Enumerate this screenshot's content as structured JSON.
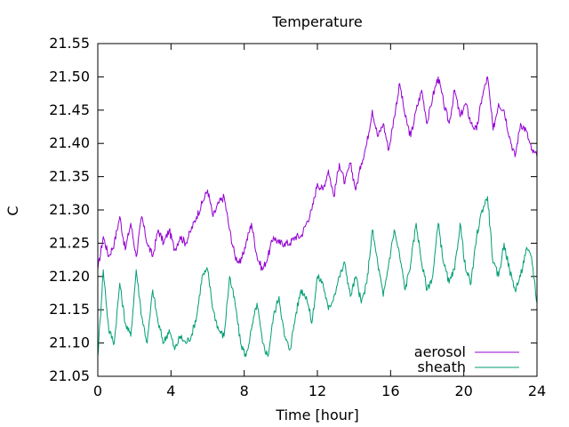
{
  "chart_data": {
    "type": "line",
    "title": "Temperature",
    "xlabel": "Time [hour]",
    "ylabel": "C",
    "xlim": [
      0,
      24
    ],
    "ylim": [
      21.05,
      21.55
    ],
    "xticks": [
      0,
      4,
      8,
      12,
      16,
      20,
      24
    ],
    "yticks": [
      21.05,
      21.1,
      21.15,
      21.2,
      21.25,
      21.3,
      21.35,
      21.4,
      21.45,
      21.5,
      21.55
    ],
    "grid": false,
    "legend_position": "bottom-right",
    "series": [
      {
        "name": "aerosol",
        "color": "#9400d3",
        "x": [
          0,
          0.3,
          0.6,
          0.9,
          1.2,
          1.5,
          1.8,
          2.1,
          2.4,
          2.7,
          3.0,
          3.3,
          3.6,
          3.9,
          4.2,
          4.5,
          4.8,
          5.1,
          5.4,
          5.7,
          6.0,
          6.3,
          6.6,
          6.9,
          7.2,
          7.5,
          7.8,
          8.1,
          8.4,
          8.7,
          9.0,
          9.3,
          9.6,
          9.9,
          10.2,
          10.5,
          10.8,
          11.1,
          11.4,
          11.7,
          12.0,
          12.3,
          12.6,
          12.9,
          13.2,
          13.5,
          13.8,
          14.1,
          14.4,
          14.7,
          15.0,
          15.3,
          15.6,
          15.9,
          16.2,
          16.5,
          16.8,
          17.1,
          17.4,
          17.7,
          18.0,
          18.3,
          18.6,
          18.9,
          19.2,
          19.5,
          19.8,
          20.1,
          20.4,
          20.7,
          21.0,
          21.3,
          21.6,
          21.9,
          22.2,
          22.5,
          22.8,
          23.1,
          23.4,
          23.7,
          24.0
        ],
        "y": [
          21.21,
          21.26,
          21.23,
          21.25,
          21.29,
          21.24,
          21.28,
          21.23,
          21.29,
          21.25,
          21.23,
          21.27,
          21.25,
          21.27,
          21.24,
          21.26,
          21.25,
          21.27,
          21.29,
          21.31,
          21.33,
          21.29,
          21.31,
          21.32,
          21.27,
          21.23,
          21.22,
          21.25,
          21.28,
          21.23,
          21.21,
          21.23,
          21.26,
          21.25,
          21.25,
          21.25,
          21.26,
          21.26,
          21.28,
          21.3,
          21.34,
          21.33,
          21.36,
          21.32,
          21.37,
          21.34,
          21.37,
          21.33,
          21.37,
          21.4,
          21.45,
          21.41,
          21.43,
          21.39,
          21.44,
          21.49,
          21.44,
          21.41,
          21.45,
          21.48,
          21.43,
          21.47,
          21.5,
          21.46,
          21.43,
          21.48,
          21.44,
          21.46,
          21.43,
          21.42,
          21.47,
          21.5,
          21.42,
          21.46,
          21.45,
          21.41,
          21.38,
          21.43,
          21.42,
          21.39,
          21.38
        ]
      },
      {
        "name": "sheath",
        "color": "#009e73",
        "x": [
          0,
          0.3,
          0.6,
          0.9,
          1.2,
          1.5,
          1.8,
          2.1,
          2.4,
          2.7,
          3.0,
          3.3,
          3.6,
          3.9,
          4.2,
          4.5,
          4.8,
          5.1,
          5.4,
          5.7,
          6.0,
          6.3,
          6.6,
          6.9,
          7.2,
          7.5,
          7.8,
          8.1,
          8.4,
          8.7,
          9.0,
          9.3,
          9.6,
          9.9,
          10.2,
          10.5,
          10.8,
          11.1,
          11.4,
          11.7,
          12.0,
          12.3,
          12.6,
          12.9,
          13.2,
          13.5,
          13.8,
          14.1,
          14.4,
          14.7,
          15.0,
          15.3,
          15.6,
          15.9,
          16.2,
          16.5,
          16.8,
          17.1,
          17.4,
          17.7,
          18.0,
          18.3,
          18.6,
          18.9,
          19.2,
          19.5,
          19.8,
          20.1,
          20.4,
          20.7,
          21.0,
          21.3,
          21.6,
          21.9,
          22.2,
          22.5,
          22.8,
          23.1,
          23.4,
          23.7,
          24.0
        ],
        "y": [
          21.08,
          21.21,
          21.12,
          21.1,
          21.19,
          21.13,
          21.11,
          21.21,
          21.14,
          21.1,
          21.18,
          21.13,
          21.1,
          21.12,
          21.09,
          21.11,
          21.1,
          21.11,
          21.14,
          21.2,
          21.21,
          21.15,
          21.12,
          21.11,
          21.2,
          21.16,
          21.1,
          21.08,
          21.12,
          21.16,
          21.1,
          21.08,
          21.14,
          21.17,
          21.11,
          21.09,
          21.14,
          21.18,
          21.17,
          21.13,
          21.2,
          21.19,
          21.15,
          21.17,
          21.2,
          21.22,
          21.17,
          21.2,
          21.16,
          21.19,
          21.27,
          21.22,
          21.17,
          21.22,
          21.27,
          21.23,
          21.18,
          21.22,
          21.28,
          21.22,
          21.18,
          21.2,
          21.28,
          21.22,
          21.19,
          21.21,
          21.28,
          21.21,
          21.19,
          21.26,
          21.3,
          21.32,
          21.22,
          21.2,
          21.25,
          21.21,
          21.18,
          21.2,
          21.24,
          21.23,
          21.16
        ]
      }
    ]
  }
}
